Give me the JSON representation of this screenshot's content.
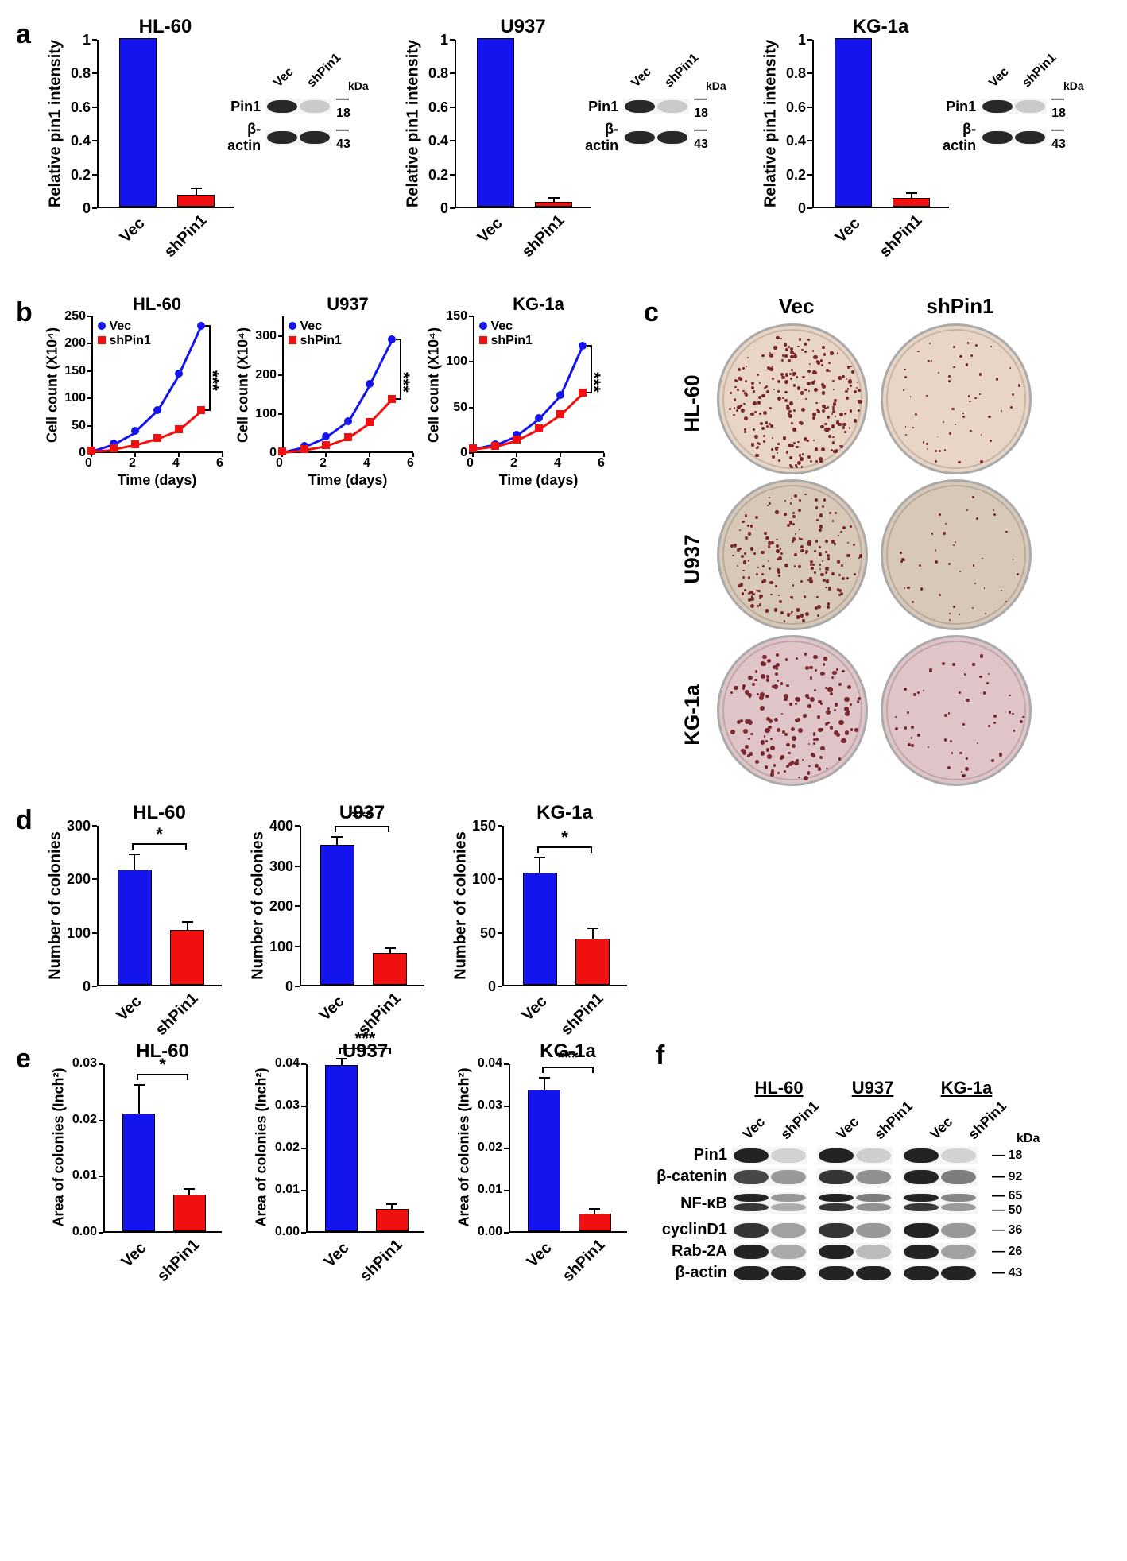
{
  "colors": {
    "vec": "#1414ef",
    "shpin1": "#f01010",
    "black": "#000000",
    "blot_dark": "#2a2a2a",
    "blot_light": "#b8b8b8",
    "dish_bg_1": "#e8d5c5",
    "dish_bg_2": "#d8c8b8",
    "dish_bg_3": "#e0c5c8",
    "colony_color": "#7a2830"
  },
  "cell_lines": [
    "HL-60",
    "U937",
    "KG-1a"
  ],
  "conditions": [
    "Vec",
    "shPin1"
  ],
  "panel_a": {
    "ylabel": "Relative pin1 intensity",
    "ylim": [
      0,
      1.0
    ],
    "yticks": [
      0.0,
      0.2,
      0.4,
      0.6,
      0.8,
      1.0
    ],
    "bar_width": 0.6,
    "cells": [
      {
        "title": "HL-60",
        "values": [
          1.0,
          0.07
        ],
        "err": [
          0,
          0.04
        ]
      },
      {
        "title": "U937",
        "values": [
          1.0,
          0.03
        ],
        "err": [
          0,
          0.02
        ]
      },
      {
        "title": "KG-1a",
        "values": [
          1.0,
          0.05
        ],
        "err": [
          0,
          0.03
        ]
      }
    ],
    "blot": {
      "rows": [
        "Pin1",
        "β-actin"
      ],
      "lane_labels": [
        "Vec",
        "shPin1"
      ],
      "kda_label": "kDa",
      "kda": [
        18,
        43
      ],
      "intensity": [
        [
          1.0,
          0.05
        ],
        [
          1.0,
          1.0
        ]
      ]
    }
  },
  "panel_b": {
    "ylabel": "Cell count (X10⁴)",
    "xlabel": "Time (days)",
    "xlim": [
      0,
      6
    ],
    "xticks": [
      0,
      2,
      4,
      6
    ],
    "time": [
      0,
      1,
      2,
      3,
      4,
      5
    ],
    "cells": [
      {
        "title": "HL-60",
        "ylim": [
          0,
          250
        ],
        "yticks": [
          0,
          50,
          100,
          150,
          200,
          250
        ],
        "vec": [
          5,
          18,
          40,
          78,
          145,
          232
        ],
        "shpin": [
          5,
          8,
          16,
          28,
          44,
          78
        ],
        "sig": "***"
      },
      {
        "title": "U937",
        "ylim": [
          0,
          350
        ],
        "yticks_raw": [
          0,
          100,
          200,
          300
        ],
        "yticks": [
          "0",
          "100",
          "200",
          "300"
        ],
        "vec": [
          5,
          18,
          42,
          82,
          178,
          290
        ],
        "shpin": [
          5,
          10,
          20,
          40,
          79,
          138
        ],
        "sig": "***"
      },
      {
        "title": "KG-1a",
        "ylim": [
          0,
          150
        ],
        "yticks": [
          0,
          50,
          100,
          150
        ],
        "vec": [
          5,
          10,
          20,
          38,
          64,
          118
        ],
        "shpin": [
          5,
          8,
          15,
          27,
          43,
          66
        ],
        "sig": "***"
      }
    ]
  },
  "panel_c": {
    "col_headers": [
      "Vec",
      "shPin1"
    ],
    "row_headers": [
      "HL-60",
      "U937",
      "KG-1a"
    ],
    "colony_counts": [
      [
        260,
        55
      ],
      [
        190,
        40
      ],
      [
        170,
        50
      ]
    ],
    "colony_size": [
      [
        3.5,
        2.5
      ],
      [
        3.2,
        2.8
      ],
      [
        4.2,
        3.2
      ]
    ]
  },
  "panel_d": {
    "ylabel": "Number of colonies",
    "cells": [
      {
        "title": "HL-60",
        "ylim": [
          0,
          300
        ],
        "yticks": [
          0,
          100,
          200,
          300
        ],
        "values": [
          215,
          103
        ],
        "err": [
          28,
          14
        ],
        "sig": "*"
      },
      {
        "title": "U937",
        "ylim": [
          0,
          400
        ],
        "yticks": [
          0,
          100,
          200,
          300,
          400
        ],
        "values": [
          348,
          80
        ],
        "err": [
          20,
          12
        ],
        "sig": "***"
      },
      {
        "title": "KG-1a",
        "ylim": [
          0,
          150
        ],
        "yticks": [
          0,
          50,
          100,
          150
        ],
        "values": [
          105,
          43
        ],
        "err": [
          14,
          10
        ],
        "sig": "*"
      }
    ]
  },
  "panel_e": {
    "ylabel": "Area of  colonies (Inch²)",
    "cells": [
      {
        "title": "HL-60",
        "ylim": [
          0,
          0.03
        ],
        "yticks": [
          "0.00",
          "0.01",
          "0.02",
          "0.03"
        ],
        "ytvals": [
          0,
          0.01,
          0.02,
          0.03
        ],
        "values": [
          0.021,
          0.0065
        ],
        "err": [
          0.005,
          0.001
        ],
        "sig": "*"
      },
      {
        "title": "U937",
        "ylim": [
          0,
          0.04
        ],
        "yticks": [
          "0.00",
          "0.01",
          "0.02",
          "0.03",
          "0.04"
        ],
        "ytvals": [
          0,
          0.01,
          0.02,
          0.03,
          0.04
        ],
        "values": [
          0.0395,
          0.0052
        ],
        "err": [
          0.0015,
          0.0012
        ],
        "sig": "***"
      },
      {
        "title": "KG-1a",
        "ylim": [
          0,
          0.04
        ],
        "yticks": [
          "0.00",
          "0.01",
          "0.02",
          "0.03",
          "0.04"
        ],
        "ytvals": [
          0,
          0.01,
          0.02,
          0.03,
          0.04
        ],
        "values": [
          0.0335,
          0.0042
        ],
        "err": [
          0.003,
          0.001
        ],
        "sig": "***"
      }
    ]
  },
  "panel_f": {
    "cell_headers": [
      "HL-60",
      "U937",
      "KG-1a"
    ],
    "lane_labels": [
      "Vec",
      "shPin1"
    ],
    "kda_label": "kDa",
    "rows": [
      {
        "label": "Pin1",
        "kda": "18",
        "intensity": [
          [
            1.0,
            0.03
          ],
          [
            1.0,
            0.05
          ],
          [
            1.0,
            0.03
          ]
        ]
      },
      {
        "label": "β-catenin",
        "kda": "92",
        "intensity": [
          [
            0.8,
            0.35
          ],
          [
            0.9,
            0.4
          ],
          [
            1.0,
            0.5
          ]
        ]
      },
      {
        "label": "NF-κB",
        "kda": "65\n50",
        "intensity": [
          [
            1.0,
            0.35
          ],
          [
            1.0,
            0.5
          ],
          [
            1.0,
            0.45
          ]
        ],
        "double": true
      },
      {
        "label": "cyclinD1",
        "kda": "36",
        "intensity": [
          [
            0.9,
            0.3
          ],
          [
            0.9,
            0.35
          ],
          [
            1.0,
            0.35
          ]
        ]
      },
      {
        "label": "Rab-2A",
        "kda": "26",
        "intensity": [
          [
            1.0,
            0.25
          ],
          [
            1.0,
            0.15
          ],
          [
            1.0,
            0.3
          ]
        ]
      },
      {
        "label": "β-actin",
        "kda": "43",
        "intensity": [
          [
            1.0,
            1.0
          ],
          [
            1.0,
            1.0
          ],
          [
            1.0,
            1.0
          ]
        ]
      }
    ]
  }
}
